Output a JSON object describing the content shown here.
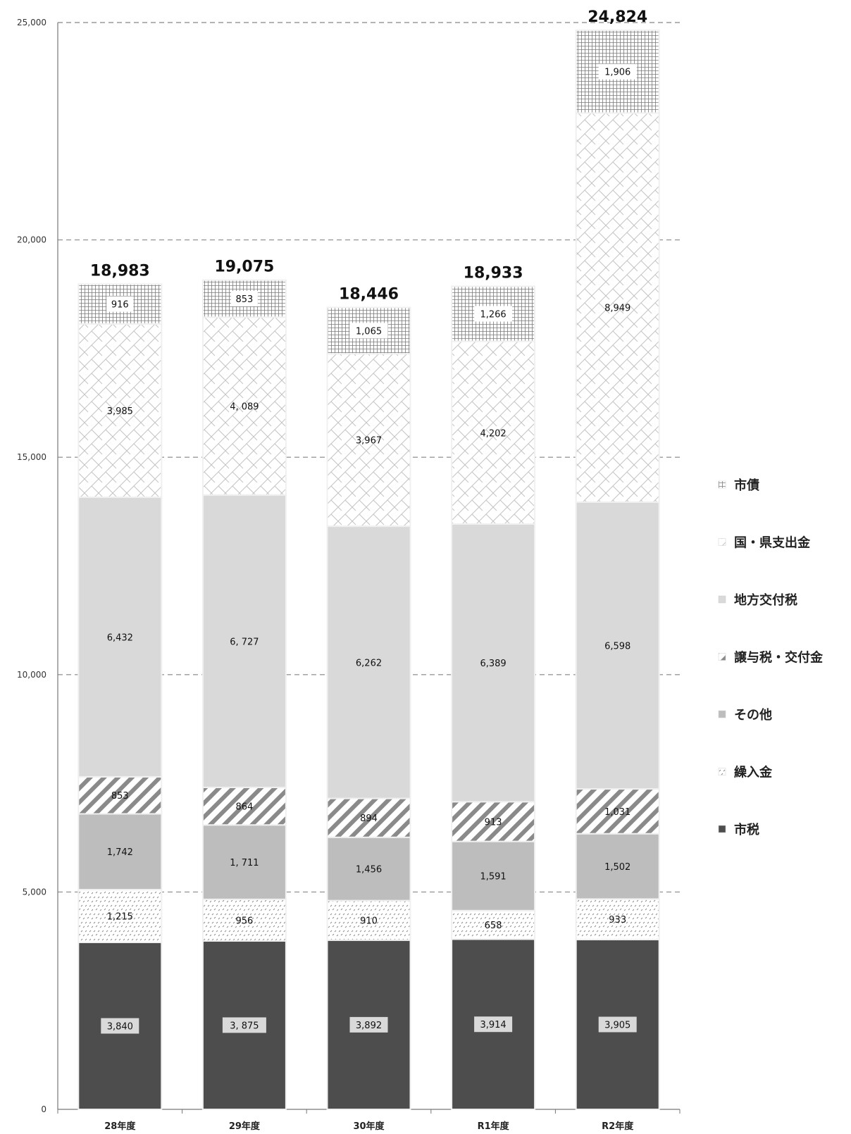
{
  "chart_data": {
    "type": "bar",
    "stacked": true,
    "categories": [
      "28年度",
      "29年度",
      "30年度",
      "R1年度",
      "R2年度"
    ],
    "series": [
      {
        "name": "市税",
        "values": [
          3840,
          3875,
          3892,
          3914,
          3905
        ],
        "labels": [
          "3,840",
          "3, 875",
          "3,892",
          "3,914",
          "3,905"
        ],
        "color": "#4d4d4d",
        "pattern": "solid-dark"
      },
      {
        "name": "繰入金",
        "values": [
          1215,
          956,
          910,
          658,
          933
        ],
        "labels": [
          "1,215",
          "956",
          "910",
          "658",
          "933"
        ],
        "color": "#ffffff",
        "pattern": "dots"
      },
      {
        "name": "その他",
        "values": [
          1742,
          1711,
          1456,
          1591,
          1502
        ],
        "labels": [
          "1,742",
          "1, 711",
          "1,456",
          "1,591",
          "1,502"
        ],
        "color": "#bdbdbd",
        "pattern": "solid-mid"
      },
      {
        "name": "譲与税・交付金",
        "values": [
          853,
          864,
          894,
          913,
          1031
        ],
        "labels": [
          "853",
          "864",
          "894",
          "913",
          "1,031"
        ],
        "color": "#ffffff",
        "pattern": "wide-diagonal"
      },
      {
        "name": "地方交付税",
        "values": [
          6432,
          6727,
          6262,
          6389,
          6598
        ],
        "labels": [
          "6,432",
          "6, 727",
          "6,262",
          "6,389",
          "6,598"
        ],
        "color": "#d9d9d9",
        "pattern": "solid-light"
      },
      {
        "name": "国・県支出金",
        "values": [
          3985,
          4089,
          3967,
          4202,
          8949
        ],
        "labels": [
          "3,985",
          "4, 089",
          "3,967",
          "4,202",
          "8,949"
        ],
        "color": "#ffffff",
        "pattern": "zigzag"
      },
      {
        "name": "市債",
        "values": [
          916,
          853,
          1065,
          1266,
          1906
        ],
        "labels": [
          "916",
          "853",
          "1,065",
          "1,266",
          "1,906"
        ],
        "color": "#ffffff",
        "pattern": "grid"
      }
    ],
    "totals": [
      18983,
      19075,
      18446,
      18933,
      24824
    ],
    "total_labels": [
      "18,983",
      "19,075",
      "18,446",
      "18,933",
      "24,824"
    ],
    "ylim": [
      0,
      25000
    ],
    "yticks": [
      0,
      5000,
      10000,
      15000,
      20000,
      25000
    ],
    "ytick_labels": [
      "0",
      "5,000",
      "10,000",
      "15,000",
      "20,000",
      "25,000"
    ],
    "grid": "horizontal-dashed",
    "legend": {
      "placement": "right",
      "order": [
        "市債",
        "国・県支出金",
        "地方交付税",
        "譲与税・交付金",
        "その他",
        "繰入金",
        "市税"
      ]
    },
    "title": "",
    "xlabel": "",
    "ylabel": ""
  }
}
